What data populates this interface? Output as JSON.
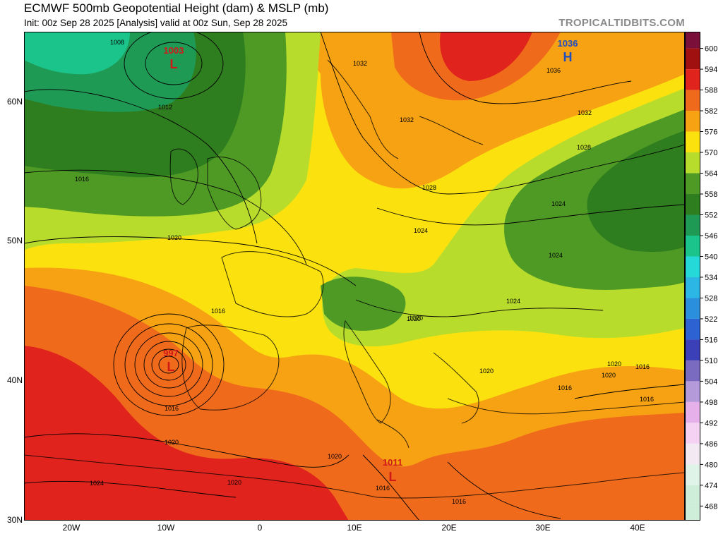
{
  "header": {
    "title": "ECMWF 500mb Geopotential Height (dam) & MSLP (mb)",
    "subtitle": "Init: 00z Sep 28 2025   [Analysis]   valid at 00z Sun, Sep 28 2025",
    "brand": "TROPICALTIDBITS.COM"
  },
  "axes": {
    "lat_labels": [
      "60N",
      "50N",
      "40N",
      "30N"
    ],
    "lon_labels": [
      "20W",
      "10W",
      "0",
      "10E",
      "20E",
      "30E",
      "40E"
    ]
  },
  "colorbar": {
    "levels": [
      "600",
      "594",
      "588",
      "582",
      "576",
      "570",
      "564",
      "558",
      "552",
      "546",
      "540",
      "534",
      "528",
      "522",
      "516",
      "510",
      "504",
      "498",
      "492",
      "486",
      "480",
      "474",
      "468"
    ],
    "colors": [
      "#7a0f3a",
      "#a01010",
      "#e0231c",
      "#f06a1c",
      "#f7a213",
      "#fbe20f",
      "#b8dc2c",
      "#4f9a25",
      "#2e7d1e",
      "#1f9a55",
      "#1bc48a",
      "#26d9d9",
      "#2bb6e6",
      "#2a8fdd",
      "#2d62d2",
      "#3b3fb8",
      "#7b6bc0",
      "#b49ad8",
      "#e6b0ea",
      "#f5d2f3",
      "#f2e9f2",
      "#dff3e9",
      "#cfeed9"
    ]
  },
  "pressure_systems": [
    {
      "type": "L",
      "value": "1003"
    },
    {
      "type": "H",
      "value": "1036"
    },
    {
      "type": "L",
      "value": "997"
    },
    {
      "type": "L",
      "value": "1011"
    }
  ],
  "isobar_labels": [
    "1008",
    "1012",
    "1016",
    "1020",
    "1032",
    "1032",
    "1036",
    "1032",
    "1028",
    "1028",
    "1024",
    "1024",
    "1024",
    "1024",
    "1020",
    "1016",
    "1016",
    "1020",
    "1020",
    "1020",
    "1024",
    "1020",
    "1020",
    "1016",
    "1016",
    "1016",
    "1016",
    "1020",
    "1020",
    "1016"
  ]
}
